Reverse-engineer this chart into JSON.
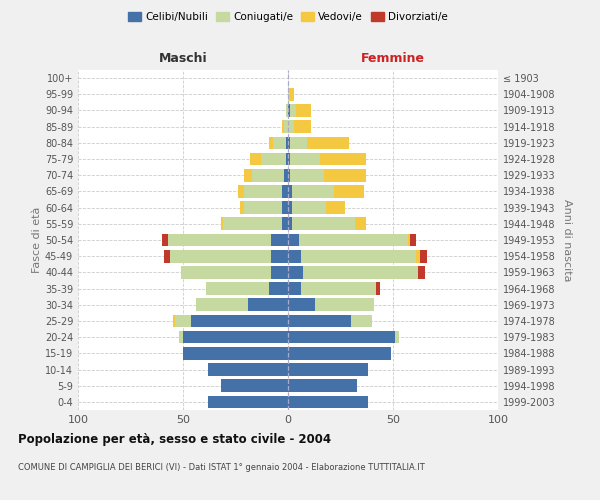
{
  "age_groups": [
    "0-4",
    "5-9",
    "10-14",
    "15-19",
    "20-24",
    "25-29",
    "30-34",
    "35-39",
    "40-44",
    "45-49",
    "50-54",
    "55-59",
    "60-64",
    "65-69",
    "70-74",
    "75-79",
    "80-84",
    "85-89",
    "90-94",
    "95-99",
    "100+"
  ],
  "birth_years": [
    "1999-2003",
    "1994-1998",
    "1989-1993",
    "1984-1988",
    "1979-1983",
    "1974-1978",
    "1969-1973",
    "1964-1968",
    "1959-1963",
    "1954-1958",
    "1949-1953",
    "1944-1948",
    "1939-1943",
    "1934-1938",
    "1929-1933",
    "1924-1928",
    "1919-1923",
    "1914-1918",
    "1909-1913",
    "1904-1908",
    "≤ 1903"
  ],
  "maschi": {
    "celibi": [
      38,
      32,
      38,
      50,
      50,
      46,
      19,
      9,
      8,
      8,
      8,
      3,
      3,
      3,
      2,
      1,
      1,
      0,
      0,
      0,
      0
    ],
    "coniugati": [
      0,
      0,
      0,
      0,
      2,
      8,
      25,
      30,
      43,
      48,
      49,
      28,
      18,
      18,
      15,
      12,
      6,
      2,
      1,
      0,
      0
    ],
    "vedovi": [
      0,
      0,
      0,
      0,
      0,
      1,
      0,
      0,
      0,
      0,
      0,
      1,
      2,
      3,
      4,
      5,
      2,
      1,
      0,
      0,
      0
    ],
    "divorziati": [
      0,
      0,
      0,
      0,
      0,
      0,
      0,
      0,
      0,
      3,
      3,
      0,
      0,
      0,
      0,
      0,
      0,
      0,
      0,
      0,
      0
    ]
  },
  "femmine": {
    "nubili": [
      38,
      33,
      38,
      49,
      51,
      30,
      13,
      6,
      7,
      6,
      5,
      2,
      2,
      2,
      1,
      1,
      1,
      0,
      1,
      0,
      0
    ],
    "coniugate": [
      0,
      0,
      0,
      0,
      2,
      10,
      28,
      36,
      55,
      55,
      52,
      30,
      16,
      20,
      16,
      14,
      8,
      3,
      3,
      1,
      0
    ],
    "vedove": [
      0,
      0,
      0,
      0,
      0,
      0,
      0,
      0,
      0,
      2,
      1,
      5,
      9,
      14,
      20,
      22,
      20,
      8,
      7,
      2,
      0
    ],
    "divorziate": [
      0,
      0,
      0,
      0,
      0,
      0,
      0,
      2,
      3,
      3,
      3,
      0,
      0,
      0,
      0,
      0,
      0,
      0,
      0,
      0,
      0
    ]
  },
  "colors": {
    "celibe": "#4472a8",
    "coniugato": "#c5d9a0",
    "vedovo": "#f5c842",
    "divorziato": "#c0392b"
  },
  "xlim": 100,
  "title": "Popolazione per età, sesso e stato civile - 2004",
  "subtitle": "COMUNE DI CAMPIGLIA DEI BERICI (VI) - Dati ISTAT 1° gennaio 2004 - Elaborazione TUTTITALIA.IT",
  "ylabel_left": "Fasce di età",
  "ylabel_right": "Anni di nascita",
  "header_left": "Maschi",
  "header_right": "Femmine",
  "bg_color": "#f0f0f0",
  "plot_bg_color": "#ffffff"
}
